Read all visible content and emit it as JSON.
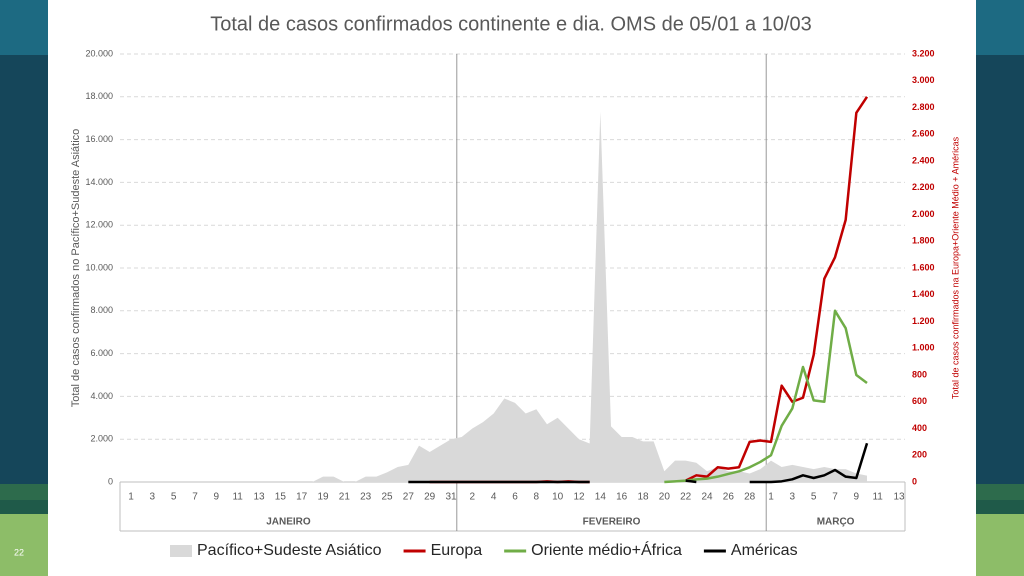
{
  "slide": {
    "page_number": "22"
  },
  "chart_data": {
    "type": "area_line",
    "title": "Total de casos confirmados continente e dia. OMS de 05/01 a 10/03",
    "y_label": "Total de casos confirmados no Pacífico+Sudeste Asiático",
    "y2_label": "Total de casos confirmados na Europa+Oriente Médio + Américas",
    "categories": [
      "1",
      null,
      "3",
      null,
      "5",
      null,
      "7",
      null,
      "9",
      null,
      "11",
      null,
      "13",
      null,
      "15",
      null,
      "17",
      null,
      "19",
      null,
      "21",
      null,
      "23",
      null,
      "25",
      null,
      "27",
      null,
      "29",
      null,
      "31",
      null,
      "2",
      null,
      "4",
      null,
      "6",
      null,
      "8",
      null,
      "10",
      null,
      "12",
      null,
      "14",
      null,
      "16",
      null,
      "18",
      null,
      "20",
      null,
      "22",
      null,
      "24",
      null,
      "26",
      null,
      "28",
      null,
      "1",
      null,
      "3",
      null,
      "5",
      null,
      "7",
      null,
      "9",
      null,
      "11",
      null,
      "13"
    ],
    "groups": [
      "JANEIRO",
      "FEVEREIRO",
      "MARÇO"
    ],
    "group_sizes": [
      31,
      29,
      13
    ],
    "ylim": [
      0,
      20000
    ],
    "yticks": [
      0,
      {
        "value": 2000,
        "label": "2.000"
      },
      {
        "value": 4000,
        "label": "4.000"
      },
      {
        "value": 6000,
        "label": "6.000"
      },
      {
        "value": 8000,
        "label": "8.000"
      },
      {
        "value": 10000,
        "label": "10.000"
      },
      {
        "value": 12000,
        "label": "12.000"
      },
      {
        "value": 14000,
        "label": "14.000"
      },
      {
        "value": 16000,
        "label": "16.000"
      },
      {
        "value": 18000,
        "label": "18.000"
      },
      {
        "value": 20000,
        "label": "20.000"
      }
    ],
    "y2lim": [
      0,
      3200
    ],
    "y2ticks": [
      0,
      200,
      400,
      600,
      800,
      {
        "value": 1000,
        "label": "1.000"
      },
      {
        "value": 1200,
        "label": "1.200"
      },
      {
        "value": 1400,
        "label": "1.400"
      },
      {
        "value": 1600,
        "label": "1.600"
      },
      {
        "value": 1800,
        "label": "1.800"
      },
      {
        "value": 2000,
        "label": "2.000"
      },
      {
        "value": 2200,
        "label": "2.200"
      },
      {
        "value": 2400,
        "label": "2.400"
      },
      {
        "value": 2600,
        "label": "2.600"
      },
      {
        "value": 2800,
        "label": "2.800"
      },
      {
        "value": 3000,
        "label": "3.000"
      },
      {
        "value": 3200,
        "label": "3.200"
      }
    ],
    "y2_color": "#c00000",
    "grid": true,
    "series": [
      {
        "name": "Pacífico+Sudeste Asiático",
        "color": "#d9d9d9",
        "kind": "area",
        "values": [
          null,
          null,
          null,
          null,
          0,
          0,
          0,
          0,
          0,
          0,
          0,
          0,
          0,
          0,
          0,
          0,
          0,
          0,
          250,
          250,
          0,
          0,
          250,
          250,
          450,
          700,
          800,
          1700,
          1400,
          1700,
          2000,
          2100,
          2500,
          2800,
          3200,
          3900,
          3700,
          3200,
          3400,
          2700,
          3000,
          2500,
          2000,
          1800,
          17300,
          2600,
          2100,
          2100,
          1900,
          1900,
          500,
          1000,
          1000,
          900,
          500,
          700,
          500,
          500,
          400,
          600,
          1000,
          700,
          800,
          700,
          600,
          700,
          600,
          600,
          400,
          300,
          null,
          null,
          null
        ]
      },
      {
        "name": "Europa",
        "color": "#c00000",
        "kind": "line",
        "axis": "y2",
        "values": [
          null,
          null,
          null,
          null,
          null,
          null,
          null,
          null,
          null,
          null,
          null,
          null,
          null,
          null,
          null,
          null,
          null,
          null,
          null,
          null,
          null,
          null,
          null,
          null,
          null,
          null,
          null,
          null,
          0,
          0,
          0,
          0,
          0,
          0,
          0,
          0,
          0,
          0,
          0,
          5,
          0,
          5,
          0,
          0,
          null,
          null,
          null,
          null,
          null,
          null,
          null,
          null,
          10,
          50,
          40,
          110,
          100,
          110,
          300,
          310,
          300,
          720,
          600,
          630,
          950,
          1520,
          1680,
          1960,
          2760,
          2880,
          null,
          null,
          null
        ]
      },
      {
        "name": "Oriente médio+África",
        "color": "#70ad47",
        "kind": "line",
        "axis": "y2",
        "values": [
          null,
          null,
          null,
          null,
          null,
          null,
          null,
          null,
          null,
          null,
          null,
          null,
          null,
          null,
          null,
          null,
          null,
          null,
          null,
          null,
          null,
          null,
          null,
          null,
          null,
          null,
          null,
          null,
          null,
          null,
          null,
          null,
          null,
          null,
          null,
          null,
          null,
          null,
          null,
          null,
          null,
          null,
          null,
          null,
          null,
          null,
          null,
          null,
          null,
          null,
          0,
          5,
          10,
          20,
          25,
          40,
          60,
          80,
          110,
          150,
          200,
          420,
          550,
          860,
          610,
          600,
          1280,
          1150,
          800,
          740,
          null,
          null,
          null
        ]
      },
      {
        "name": "Américas",
        "color": "#000000",
        "kind": "line",
        "axis": "y2",
        "values": [
          null,
          null,
          null,
          null,
          null,
          null,
          null,
          null,
          null,
          null,
          null,
          null,
          null,
          null,
          null,
          null,
          null,
          null,
          null,
          null,
          null,
          null,
          null,
          null,
          null,
          null,
          0,
          0,
          0,
          0,
          0,
          0,
          0,
          0,
          0,
          0,
          0,
          0,
          0,
          0,
          0,
          0,
          0,
          0,
          null,
          null,
          null,
          null,
          null,
          null,
          null,
          null,
          10,
          0,
          null,
          null,
          null,
          null,
          0,
          0,
          0,
          5,
          20,
          50,
          30,
          50,
          90,
          40,
          30,
          290,
          null,
          null,
          null
        ]
      }
    ]
  }
}
